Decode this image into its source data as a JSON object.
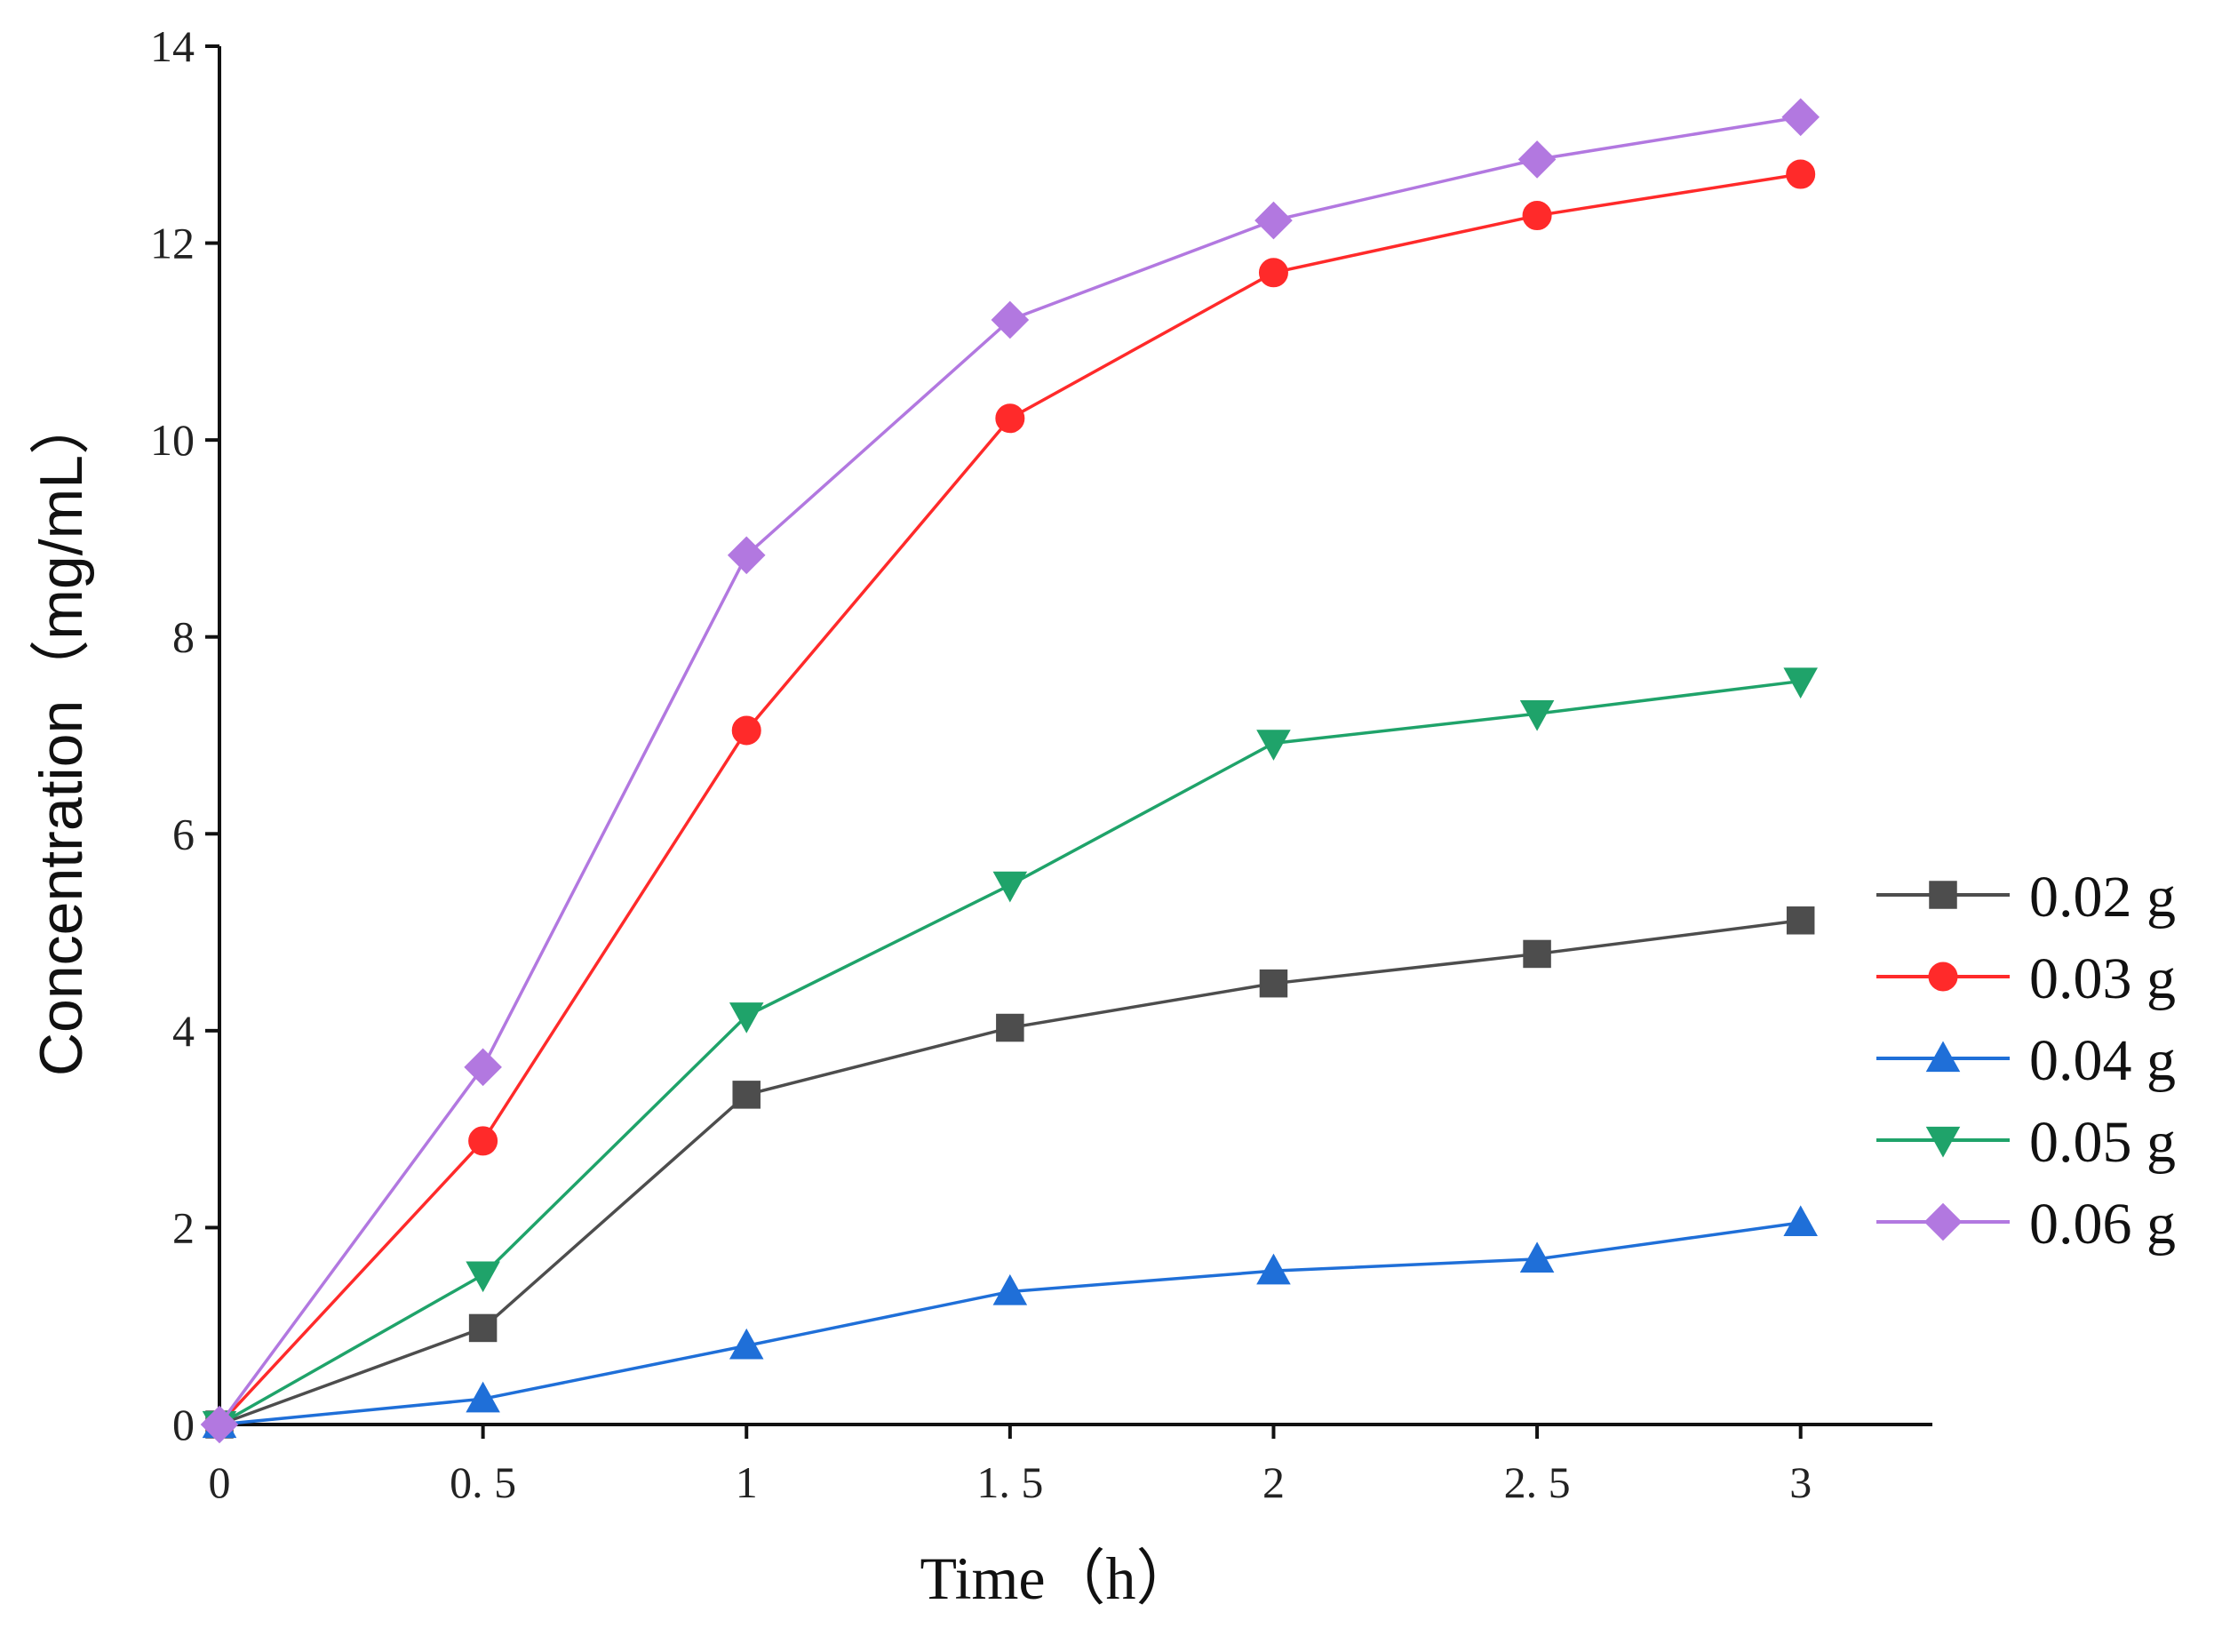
{
  "chart_data": {
    "type": "line",
    "title": "",
    "xlabel": "Time（h）",
    "ylabel": "Concentration（mg/mL）",
    "x": [
      0,
      0.5,
      1,
      1.5,
      2,
      2.5,
      3
    ],
    "xlim": [
      0,
      3.25
    ],
    "ylim": [
      0,
      14
    ],
    "x_ticks": [
      0,
      0.5,
      1,
      1.5,
      2,
      2.5,
      3
    ],
    "x_tick_labels": [
      "0",
      "0. 5",
      "1",
      "1. 5",
      "2",
      "2. 5",
      "3"
    ],
    "y_ticks": [
      0,
      2,
      4,
      6,
      8,
      10,
      12,
      14
    ],
    "y_tick_labels": [
      "0",
      "2",
      "4",
      "6",
      "8",
      "10",
      "12",
      "14"
    ],
    "grid": false,
    "legend_position": "right",
    "series": [
      {
        "name": "0.02 g",
        "color": "#4d4d4d",
        "marker": "square",
        "values": [
          0,
          0.98,
          3.35,
          4.03,
          4.48,
          4.78,
          5.12
        ]
      },
      {
        "name": "0.03 g",
        "color": "#ff2a2a",
        "marker": "circle",
        "values": [
          0,
          2.88,
          7.05,
          10.22,
          11.7,
          12.28,
          12.7
        ]
      },
      {
        "name": "0.04 g",
        "color": "#1f6fd8",
        "marker": "triangle-up",
        "values": [
          0,
          0.26,
          0.8,
          1.35,
          1.56,
          1.68,
          2.05
        ]
      },
      {
        "name": "0.05 g",
        "color": "#1fa36a",
        "marker": "triangle-down",
        "values": [
          0,
          1.52,
          4.15,
          5.48,
          6.92,
          7.22,
          7.55
        ]
      },
      {
        "name": "0.06 g",
        "color": "#b278e0",
        "marker": "diamond",
        "values": [
          0,
          3.63,
          8.83,
          11.22,
          12.23,
          12.85,
          13.28
        ]
      }
    ]
  }
}
